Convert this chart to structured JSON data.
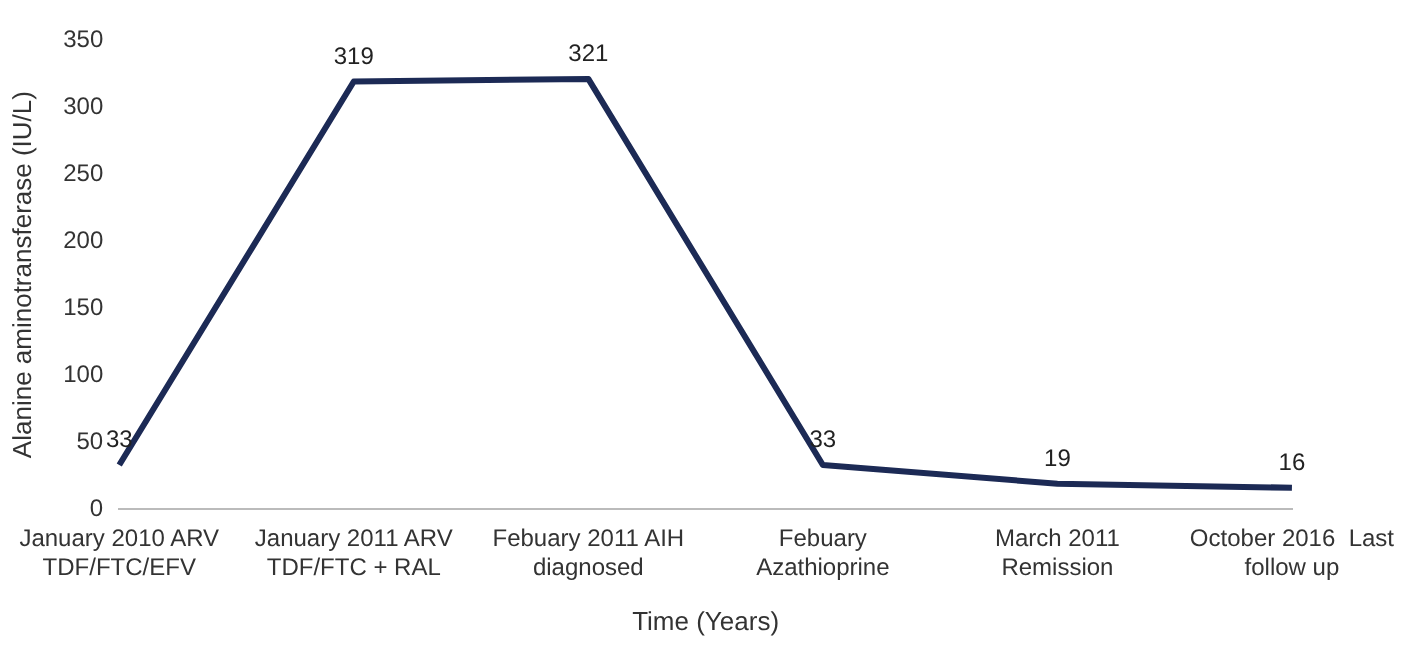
{
  "chart_data": {
    "type": "line",
    "xlabel": "Time (Years)",
    "ylabel": "Alanine aminotransferase (IU/L)",
    "categories": [
      "January 2010 ARV\nTDF/FTC/EFV",
      "January 2011 ARV\nTDF/FTC + RAL",
      "Febuary 2011 AIH\ndiagnosed",
      "Febuary\nAzathioprine",
      "March 2011\nRemission",
      "October 2016  Last\nfollow up"
    ],
    "series": [
      {
        "color": "#1c2a55",
        "values": [
          33,
          319,
          321,
          33,
          19,
          16
        ]
      }
    ],
    "ylim": [
      0,
      350
    ],
    "yticks": [
      0,
      50,
      100,
      150,
      200,
      250,
      300,
      350
    ],
    "grid": false,
    "legend": false,
    "marker": "none",
    "line_style": "solid",
    "data_labels": true
  }
}
